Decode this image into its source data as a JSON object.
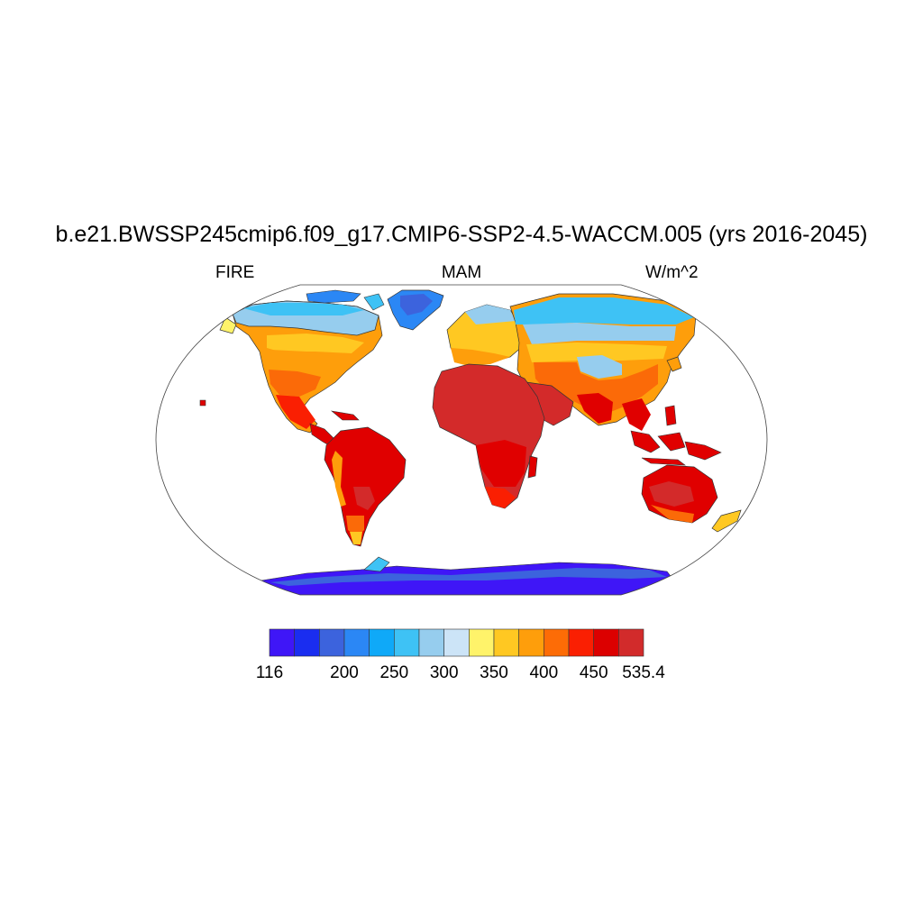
{
  "title": "b.e21.BWSSP245cmip6.f09_g17.CMIP6-SSP2-4.5-WACCM.005 (yrs 2016-2045)",
  "left_label": "FIRE",
  "center_label": "MAM",
  "right_label": "W/m^2",
  "colorbar": {
    "colors": [
      "#3f16f7",
      "#1a2df0",
      "#3c63dd",
      "#2b87f5",
      "#0fa9f8",
      "#3ec2f5",
      "#96cdee",
      "#cce4f7",
      "#fff36a",
      "#ffc822",
      "#fe9e0b",
      "#fd6c06",
      "#fa1f02",
      "#dc0000",
      "#d22b2b"
    ],
    "tick_labels": [
      "116",
      "",
      "200",
      "250",
      "300",
      "350",
      "400",
      "450",
      "535.4"
    ]
  },
  "map_colors": {
    "ocean": "#ffffff",
    "tropical": "#e00000",
    "desert": "#d32a2a",
    "warm": "#fb6a08",
    "temperate": "#fe9e0b",
    "cool": "#ffc822",
    "yellow": "#fff36a",
    "pale": "#cce4f7",
    "light": "#96cdee",
    "sky": "#3ec2f5",
    "blue": "#2b87f5",
    "deep": "#3c63dd",
    "antarctic": "#3f16f7"
  }
}
